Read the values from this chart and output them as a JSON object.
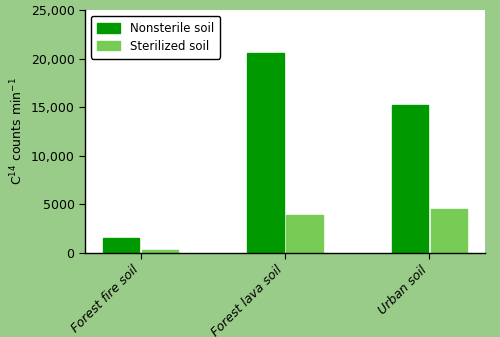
{
  "categories": [
    "Forest fire soil",
    "Forest lava soil",
    "Urban soil"
  ],
  "nonsterile_values": [
    1550,
    20600,
    15200
  ],
  "sterilized_values": [
    250,
    3900,
    4500
  ],
  "nonsterile_color": "#009900",
  "sterilized_color": "#77cc55",
  "background_color": "#99cc88",
  "plot_bg_color": "#ffffff",
  "ylabel": "C$^{14}$ counts min$^{-1}$",
  "ylim": [
    0,
    25000
  ],
  "yticks": [
    0,
    5000,
    10000,
    15000,
    20000,
    25000
  ],
  "ytick_labels": [
    "0",
    "5000",
    "10,000",
    "15,000",
    "20,000",
    "25,000"
  ],
  "legend_nonsterile": "Nonsterile soil",
  "legend_sterilized": "Sterilized soil",
  "bar_width": 0.25,
  "figsize": [
    5.0,
    3.37
  ],
  "dpi": 100
}
